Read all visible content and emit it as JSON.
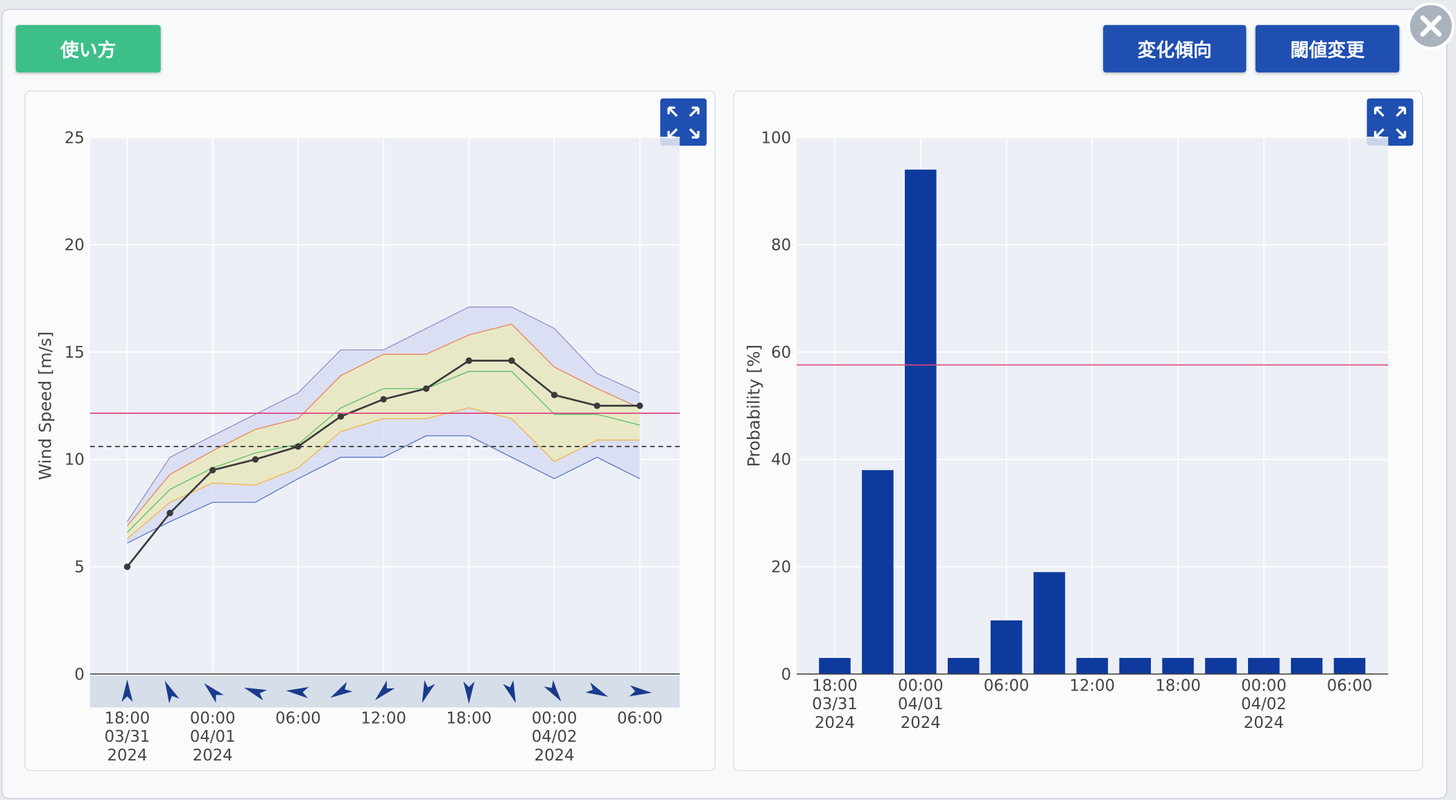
{
  "buttons": {
    "help": "使い方",
    "trend": "変化傾向",
    "threshold": "閾値変更"
  },
  "chart_data": [
    {
      "type": "line",
      "y_label": "Wind Speed [m/s]",
      "categories": [
        "18:00\n03/31\n2024",
        null,
        "00:00\n04/01\n2024",
        null,
        "06:00",
        null,
        "12:00",
        null,
        "18:00",
        null,
        "00:00\n04/02\n2024",
        null,
        "06:00"
      ],
      "ylim": [
        0,
        25
      ],
      "yticks": [
        0,
        5,
        10,
        15,
        20,
        25
      ],
      "grid": true,
      "bands": [
        {
          "fill": "#d6d9f2",
          "upper_color": "#9a8fc9",
          "lower_color": "#5b76c9",
          "upper": [
            7.1,
            10.1,
            11.1,
            12.1,
            13.1,
            15.1,
            15.1,
            16.1,
            17.1,
            17.1,
            16.1,
            14,
            13.1
          ],
          "lower": [
            6.1,
            7.1,
            8,
            8,
            9.1,
            10.1,
            10.1,
            11.1,
            11.1,
            10.1,
            9.1,
            10.1,
            9.1
          ]
        },
        {
          "fill": "#ecebb8",
          "upper_color": "#e8845a",
          "lower_color": "#f2b548",
          "upper": [
            6.9,
            9.3,
            10.4,
            11.4,
            11.9,
            13.9,
            14.9,
            14.9,
            15.8,
            16.3,
            14.3,
            13.3,
            12.4
          ],
          "lower": [
            6.3,
            8,
            8.9,
            8.8,
            9.6,
            11.3,
            11.9,
            11.9,
            12.4,
            11.9,
            9.9,
            10.9,
            10.9
          ]
        }
      ],
      "series": [
        {
          "color": "#5cbf6a",
          "values": [
            6.6,
            8.6,
            9.6,
            10.3,
            10.7,
            12.4,
            13.3,
            13.3,
            14.1,
            14.1,
            12.1,
            12.1,
            11.6
          ]
        },
        {
          "color": "#3a3a3a",
          "markers": true,
          "values": [
            5,
            7.5,
            9.5,
            10,
            10.6,
            12,
            12.8,
            13.3,
            14.6,
            14.6,
            13,
            12.5,
            12.5
          ]
        }
      ],
      "hlines": [
        {
          "value": 12.15,
          "color": "#e0457b"
        },
        {
          "value": 10.6,
          "color": "#333333",
          "dash": true
        }
      ],
      "wind_dir": [
        0,
        335,
        315,
        290,
        275,
        240,
        225,
        200,
        180,
        160,
        145,
        115,
        95
      ],
      "wind_color": "#1a3b8c"
    },
    {
      "type": "bar",
      "y_label": "Probability [%]",
      "categories": [
        "18:00\n03/31\n2024",
        null,
        "00:00\n04/01\n2024",
        null,
        "06:00",
        null,
        "12:00",
        null,
        "18:00",
        null,
        "00:00\n04/02\n2024",
        null,
        "06:00"
      ],
      "values": [
        3,
        38,
        94,
        3,
        10,
        19,
        3,
        3,
        3,
        3,
        3,
        3,
        3
      ],
      "color": "#0d3a9c",
      "ylim": [
        0,
        100
      ],
      "yticks": [
        0,
        20,
        40,
        60,
        80,
        100
      ],
      "grid": true,
      "hlines": [
        {
          "value": 57.6,
          "color": "#e0457b"
        }
      ]
    }
  ]
}
